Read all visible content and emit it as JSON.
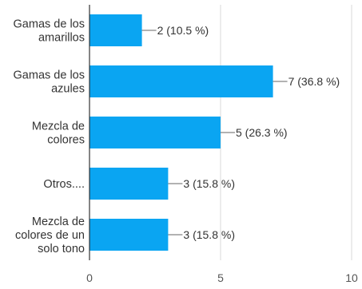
{
  "chart_data": {
    "type": "bar",
    "orientation": "horizontal",
    "categories": [
      [
        "Gamas de los",
        "amarillos"
      ],
      [
        "Gamas de los",
        "azules"
      ],
      [
        "Mezcla de",
        "colores"
      ],
      [
        "Otros...."
      ],
      [
        "Mezcla de",
        "colores de un",
        "solo tono"
      ]
    ],
    "values": [
      2,
      7,
      5,
      3,
      3
    ],
    "data_labels": [
      "2 (10.5 %)",
      "7 (36.8 %)",
      "5 (26.3 %)",
      "3 (15.8 %)",
      "3 (15.8 %)"
    ],
    "xlim": [
      0,
      10
    ],
    "xticks": [
      0,
      5,
      10
    ],
    "grid": true,
    "bar_color": "#0aa5f2"
  }
}
